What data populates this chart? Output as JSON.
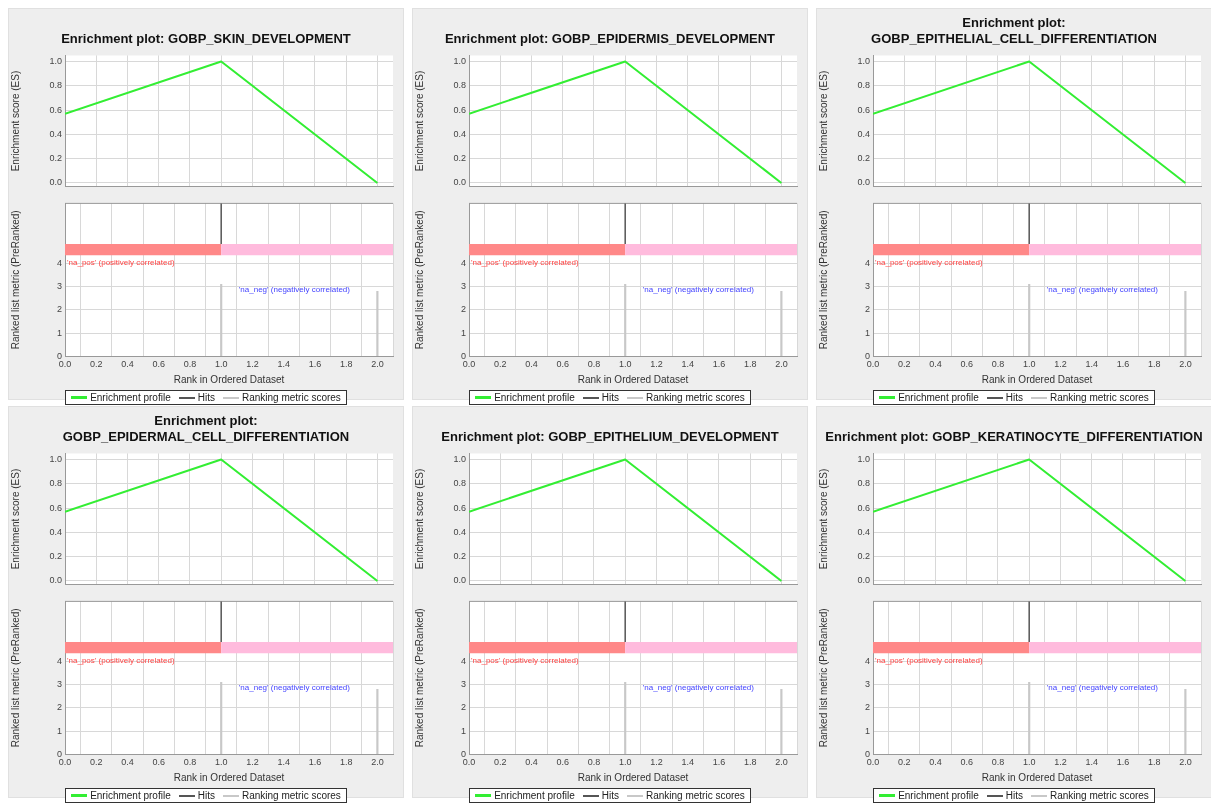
{
  "chart_data": [
    {
      "type": "line",
      "title": "Enrichment plot: GOBP_SKIN_DEVELOPMENT",
      "ylabel": "Enrichment score (ES)",
      "x": [
        0,
        1,
        2
      ],
      "series": [
        {
          "name": "Enrichment profile",
          "color": "#33ee33",
          "values": [
            0.57,
            1.0,
            0.0
          ]
        }
      ],
      "xlim": [
        0,
        2.1
      ],
      "ylim": [
        -0.03,
        1.05
      ],
      "xticks": [
        0,
        0.2,
        0.4,
        0.6,
        0.8,
        1,
        1.2,
        1.4,
        1.6,
        1.8,
        2
      ],
      "yticks": [
        {
          "value": 0,
          "label": "0.0"
        },
        {
          "value": 0.2,
          "label": "0.2"
        },
        {
          "value": 0.4,
          "label": "0.4"
        },
        {
          "value": 0.6,
          "label": "0.6"
        },
        {
          "value": 0.8,
          "label": "0.8"
        },
        {
          "value": 1,
          "label": "1.0"
        }
      ],
      "tick_labels": "y",
      "grid": true,
      "legend": "bottom"
    },
    {
      "type": "bar",
      "x": [
        1,
        2
      ],
      "series": [
        {
          "name": "Ranking metric scores",
          "color": "#c8c8c8",
          "values": [
            3.1,
            2.8
          ]
        }
      ],
      "xlabel": "Rank in Ordered Dataset",
      "ylabel": "Ranked list metric (PreRanked)",
      "xlim": [
        0,
        2.1
      ],
      "ylim": [
        0,
        6.6
      ],
      "xticks": [
        {
          "value": 0,
          "label": "0.0"
        },
        {
          "value": 0.2,
          "label": "0.2"
        },
        {
          "value": 0.4,
          "label": "0.4"
        },
        {
          "value": 0.6,
          "label": "0.6"
        },
        {
          "value": 0.8,
          "label": "0.8"
        },
        {
          "value": 1,
          "label": "1.0"
        },
        {
          "value": 1.2,
          "label": "1.2"
        },
        {
          "value": 1.4,
          "label": "1.4"
        },
        {
          "value": 1.6,
          "label": "1.6"
        },
        {
          "value": 1.8,
          "label": "1.8"
        },
        {
          "value": 2,
          "label": "2.0"
        }
      ],
      "yticks": [
        0,
        1,
        2,
        3,
        4
      ],
      "grid": true,
      "legend": "bottom",
      "ref_lines": [
        {
          "axis": "x",
          "value": 1,
          "label": "Hits",
          "color": "#555555"
        }
      ],
      "bands": [
        {
          "axis": "x",
          "from": 0,
          "to": 1,
          "color": "#ff8888"
        },
        {
          "axis": "x",
          "from": 1,
          "to": 2.1,
          "color": "#ffbbdd"
        }
      ],
      "annotations": [
        "'na_pos' (positively correlated)",
        "'na_neg' (negatively correlated)"
      ]
    },
    {
      "type": "line",
      "title": "Enrichment plot: GOBP_EPIDERMIS_DEVELOPMENT",
      "ylabel": "Enrichment score (ES)",
      "x": [
        0,
        1,
        2
      ],
      "series": [
        {
          "name": "Enrichment profile",
          "color": "#33ee33",
          "values": [
            0.57,
            1.0,
            0.0
          ]
        }
      ],
      "xlim": [
        0,
        2.1
      ],
      "ylim": [
        -0.03,
        1.05
      ],
      "xticks": [
        0,
        0.2,
        0.4,
        0.6,
        0.8,
        1,
        1.2,
        1.4,
        1.6,
        1.8,
        2
      ],
      "yticks": [
        {
          "value": 0,
          "label": "0.0"
        },
        {
          "value": 0.2,
          "label": "0.2"
        },
        {
          "value": 0.4,
          "label": "0.4"
        },
        {
          "value": 0.6,
          "label": "0.6"
        },
        {
          "value": 0.8,
          "label": "0.8"
        },
        {
          "value": 1,
          "label": "1.0"
        }
      ],
      "tick_labels": "y",
      "grid": true,
      "legend": "bottom"
    },
    {
      "type": "bar",
      "x": [
        1,
        2
      ],
      "series": [
        {
          "name": "Ranking metric scores",
          "color": "#c8c8c8",
          "values": [
            3.1,
            2.8
          ]
        }
      ],
      "xlabel": "Rank in Ordered Dataset",
      "ylabel": "Ranked list metric (PreRanked)",
      "xlim": [
        0,
        2.1
      ],
      "ylim": [
        0,
        6.6
      ],
      "xticks": [
        {
          "value": 0,
          "label": "0.0"
        },
        {
          "value": 0.2,
          "label": "0.2"
        },
        {
          "value": 0.4,
          "label": "0.4"
        },
        {
          "value": 0.6,
          "label": "0.6"
        },
        {
          "value": 0.8,
          "label": "0.8"
        },
        {
          "value": 1,
          "label": "1.0"
        },
        {
          "value": 1.2,
          "label": "1.2"
        },
        {
          "value": 1.4,
          "label": "1.4"
        },
        {
          "value": 1.6,
          "label": "1.6"
        },
        {
          "value": 1.8,
          "label": "1.8"
        },
        {
          "value": 2,
          "label": "2.0"
        }
      ],
      "yticks": [
        0,
        1,
        2,
        3,
        4
      ],
      "grid": true,
      "legend": "bottom",
      "ref_lines": [
        {
          "axis": "x",
          "value": 1,
          "label": "Hits",
          "color": "#555555"
        }
      ],
      "bands": [
        {
          "axis": "x",
          "from": 0,
          "to": 1,
          "color": "#ff8888"
        },
        {
          "axis": "x",
          "from": 1,
          "to": 2.1,
          "color": "#ffbbdd"
        }
      ],
      "annotations": [
        "'na_pos' (positively correlated)",
        "'na_neg' (negatively correlated)"
      ]
    },
    {
      "type": "line",
      "title": "Enrichment plot: GOBP_EPITHELIAL_CELL_DIFFERENTIATION",
      "ylabel": "Enrichment score (ES)",
      "x": [
        0,
        1,
        2
      ],
      "series": [
        {
          "name": "Enrichment profile",
          "color": "#33ee33",
          "values": [
            0.57,
            1.0,
            0.0
          ]
        }
      ],
      "xlim": [
        0,
        2.1
      ],
      "ylim": [
        -0.03,
        1.05
      ],
      "xticks": [
        0,
        0.2,
        0.4,
        0.6,
        0.8,
        1,
        1.2,
        1.4,
        1.6,
        1.8,
        2
      ],
      "yticks": [
        {
          "value": 0,
          "label": "0.0"
        },
        {
          "value": 0.2,
          "label": "0.2"
        },
        {
          "value": 0.4,
          "label": "0.4"
        },
        {
          "value": 0.6,
          "label": "0.6"
        },
        {
          "value": 0.8,
          "label": "0.8"
        },
        {
          "value": 1,
          "label": "1.0"
        }
      ],
      "tick_labels": "y",
      "grid": true,
      "legend": "bottom"
    },
    {
      "type": "bar",
      "x": [
        1,
        2
      ],
      "series": [
        {
          "name": "Ranking metric scores",
          "color": "#c8c8c8",
          "values": [
            3.1,
            2.8
          ]
        }
      ],
      "xlabel": "Rank in Ordered Dataset",
      "ylabel": "Ranked list metric (PreRanked)",
      "xlim": [
        0,
        2.1
      ],
      "ylim": [
        0,
        6.6
      ],
      "xticks": [
        {
          "value": 0,
          "label": "0.0"
        },
        {
          "value": 0.2,
          "label": "0.2"
        },
        {
          "value": 0.4,
          "label": "0.4"
        },
        {
          "value": 0.6,
          "label": "0.6"
        },
        {
          "value": 0.8,
          "label": "0.8"
        },
        {
          "value": 1,
          "label": "1.0"
        },
        {
          "value": 1.2,
          "label": "1.2"
        },
        {
          "value": 1.4,
          "label": "1.4"
        },
        {
          "value": 1.6,
          "label": "1.6"
        },
        {
          "value": 1.8,
          "label": "1.8"
        },
        {
          "value": 2,
          "label": "2.0"
        }
      ],
      "yticks": [
        0,
        1,
        2,
        3,
        4
      ],
      "grid": true,
      "legend": "bottom",
      "ref_lines": [
        {
          "axis": "x",
          "value": 1,
          "label": "Hits",
          "color": "#555555"
        }
      ],
      "bands": [
        {
          "axis": "x",
          "from": 0,
          "to": 1,
          "color": "#ff8888"
        },
        {
          "axis": "x",
          "from": 1,
          "to": 2.1,
          "color": "#ffbbdd"
        }
      ],
      "annotations": [
        "'na_pos' (positively correlated)",
        "'na_neg' (negatively correlated)"
      ]
    },
    {
      "type": "line",
      "title": "Enrichment plot: GOBP_EPIDERMAL_CELL_DIFFERENTIATION",
      "ylabel": "Enrichment score (ES)",
      "x": [
        0,
        1,
        2
      ],
      "series": [
        {
          "name": "Enrichment profile",
          "color": "#33ee33",
          "values": [
            0.57,
            1.0,
            0.0
          ]
        }
      ],
      "xlim": [
        0,
        2.1
      ],
      "ylim": [
        -0.03,
        1.05
      ],
      "xticks": [
        0,
        0.2,
        0.4,
        0.6,
        0.8,
        1,
        1.2,
        1.4,
        1.6,
        1.8,
        2
      ],
      "yticks": [
        {
          "value": 0,
          "label": "0.0"
        },
        {
          "value": 0.2,
          "label": "0.2"
        },
        {
          "value": 0.4,
          "label": "0.4"
        },
        {
          "value": 0.6,
          "label": "0.6"
        },
        {
          "value": 0.8,
          "label": "0.8"
        },
        {
          "value": 1,
          "label": "1.0"
        }
      ],
      "tick_labels": "y",
      "grid": true,
      "legend": "bottom"
    },
    {
      "type": "bar",
      "x": [
        1,
        2
      ],
      "series": [
        {
          "name": "Ranking metric scores",
          "color": "#c8c8c8",
          "values": [
            3.1,
            2.8
          ]
        }
      ],
      "xlabel": "Rank in Ordered Dataset",
      "ylabel": "Ranked list metric (PreRanked)",
      "xlim": [
        0,
        2.1
      ],
      "ylim": [
        0,
        6.6
      ],
      "xticks": [
        {
          "value": 0,
          "label": "0.0"
        },
        {
          "value": 0.2,
          "label": "0.2"
        },
        {
          "value": 0.4,
          "label": "0.4"
        },
        {
          "value": 0.6,
          "label": "0.6"
        },
        {
          "value": 0.8,
          "label": "0.8"
        },
        {
          "value": 1,
          "label": "1.0"
        },
        {
          "value": 1.2,
          "label": "1.2"
        },
        {
          "value": 1.4,
          "label": "1.4"
        },
        {
          "value": 1.6,
          "label": "1.6"
        },
        {
          "value": 1.8,
          "label": "1.8"
        },
        {
          "value": 2,
          "label": "2.0"
        }
      ],
      "yticks": [
        0,
        1,
        2,
        3,
        4
      ],
      "grid": true,
      "legend": "bottom",
      "ref_lines": [
        {
          "axis": "x",
          "value": 1,
          "label": "Hits",
          "color": "#555555"
        }
      ],
      "bands": [
        {
          "axis": "x",
          "from": 0,
          "to": 1,
          "color": "#ff8888"
        },
        {
          "axis": "x",
          "from": 1,
          "to": 2.1,
          "color": "#ffbbdd"
        }
      ],
      "annotations": [
        "'na_pos' (positively correlated)",
        "'na_neg' (negatively correlated)"
      ]
    },
    {
      "type": "line",
      "title": "Enrichment plot: GOBP_EPITHELIUM_DEVELOPMENT",
      "ylabel": "Enrichment score (ES)",
      "x": [
        0,
        1,
        2
      ],
      "series": [
        {
          "name": "Enrichment profile",
          "color": "#33ee33",
          "values": [
            0.57,
            1.0,
            0.0
          ]
        }
      ],
      "xlim": [
        0,
        2.1
      ],
      "ylim": [
        -0.03,
        1.05
      ],
      "xticks": [
        0,
        0.2,
        0.4,
        0.6,
        0.8,
        1,
        1.2,
        1.4,
        1.6,
        1.8,
        2
      ],
      "yticks": [
        {
          "value": 0,
          "label": "0.0"
        },
        {
          "value": 0.2,
          "label": "0.2"
        },
        {
          "value": 0.4,
          "label": "0.4"
        },
        {
          "value": 0.6,
          "label": "0.6"
        },
        {
          "value": 0.8,
          "label": "0.8"
        },
        {
          "value": 1,
          "label": "1.0"
        }
      ],
      "tick_labels": "y",
      "grid": true,
      "legend": "bottom"
    },
    {
      "type": "bar",
      "x": [
        1,
        2
      ],
      "series": [
        {
          "name": "Ranking metric scores",
          "color": "#c8c8c8",
          "values": [
            3.1,
            2.8
          ]
        }
      ],
      "xlabel": "Rank in Ordered Dataset",
      "ylabel": "Ranked list metric (PreRanked)",
      "xlim": [
        0,
        2.1
      ],
      "ylim": [
        0,
        6.6
      ],
      "xticks": [
        {
          "value": 0,
          "label": "0.0"
        },
        {
          "value": 0.2,
          "label": "0.2"
        },
        {
          "value": 0.4,
          "label": "0.4"
        },
        {
          "value": 0.6,
          "label": "0.6"
        },
        {
          "value": 0.8,
          "label": "0.8"
        },
        {
          "value": 1,
          "label": "1.0"
        },
        {
          "value": 1.2,
          "label": "1.2"
        },
        {
          "value": 1.4,
          "label": "1.4"
        },
        {
          "value": 1.6,
          "label": "1.6"
        },
        {
          "value": 1.8,
          "label": "1.8"
        },
        {
          "value": 2,
          "label": "2.0"
        }
      ],
      "yticks": [
        0,
        1,
        2,
        3,
        4
      ],
      "grid": true,
      "legend": "bottom",
      "ref_lines": [
        {
          "axis": "x",
          "value": 1,
          "label": "Hits",
          "color": "#555555"
        }
      ],
      "bands": [
        {
          "axis": "x",
          "from": 0,
          "to": 1,
          "color": "#ff8888"
        },
        {
          "axis": "x",
          "from": 1,
          "to": 2.1,
          "color": "#ffbbdd"
        }
      ],
      "annotations": [
        "'na_pos' (positively correlated)",
        "'na_neg' (negatively correlated)"
      ]
    },
    {
      "type": "line",
      "title": "Enrichment plot: GOBP_KERATINOCYTE_DIFFERENTIATION",
      "ylabel": "Enrichment score (ES)",
      "x": [
        0,
        1,
        2
      ],
      "series": [
        {
          "name": "Enrichment profile",
          "color": "#33ee33",
          "values": [
            0.57,
            1.0,
            0.0
          ]
        }
      ],
      "xlim": [
        0,
        2.1
      ],
      "ylim": [
        -0.03,
        1.05
      ],
      "xticks": [
        0,
        0.2,
        0.4,
        0.6,
        0.8,
        1,
        1.2,
        1.4,
        1.6,
        1.8,
        2
      ],
      "yticks": [
        {
          "value": 0,
          "label": "0.0"
        },
        {
          "value": 0.2,
          "label": "0.2"
        },
        {
          "value": 0.4,
          "label": "0.4"
        },
        {
          "value": 0.6,
          "label": "0.6"
        },
        {
          "value": 0.8,
          "label": "0.8"
        },
        {
          "value": 1,
          "label": "1.0"
        }
      ],
      "tick_labels": "y",
      "grid": true,
      "legend": "bottom"
    },
    {
      "type": "bar",
      "x": [
        1,
        2
      ],
      "series": [
        {
          "name": "Ranking metric scores",
          "color": "#c8c8c8",
          "values": [
            3.1,
            2.8
          ]
        }
      ],
      "xlabel": "Rank in Ordered Dataset",
      "ylabel": "Ranked list metric (PreRanked)",
      "xlim": [
        0,
        2.1
      ],
      "ylim": [
        0,
        6.6
      ],
      "xticks": [
        {
          "value": 0,
          "label": "0.0"
        },
        {
          "value": 0.2,
          "label": "0.2"
        },
        {
          "value": 0.4,
          "label": "0.4"
        },
        {
          "value": 0.6,
          "label": "0.6"
        },
        {
          "value": 0.8,
          "label": "0.8"
        },
        {
          "value": 1,
          "label": "1.0"
        },
        {
          "value": 1.2,
          "label": "1.2"
        },
        {
          "value": 1.4,
          "label": "1.4"
        },
        {
          "value": 1.6,
          "label": "1.6"
        },
        {
          "value": 1.8,
          "label": "1.8"
        },
        {
          "value": 2,
          "label": "2.0"
        }
      ],
      "yticks": [
        0,
        1,
        2,
        3,
        4
      ],
      "grid": true,
      "legend": "bottom",
      "ref_lines": [
        {
          "axis": "x",
          "value": 1,
          "label": "Hits",
          "color": "#555555"
        }
      ],
      "bands": [
        {
          "axis": "x",
          "from": 0,
          "to": 1,
          "color": "#ff8888"
        },
        {
          "axis": "x",
          "from": 1,
          "to": 2.1,
          "color": "#ffbbdd"
        }
      ],
      "annotations": [
        "'na_pos' (positively correlated)",
        "'na_neg' (negatively correlated)"
      ]
    }
  ]
}
